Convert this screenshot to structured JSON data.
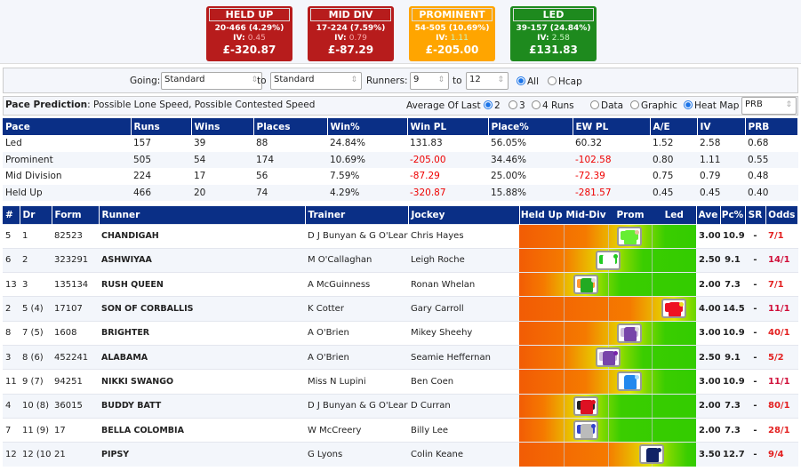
{
  "summary": [
    {
      "title": "HELD UP",
      "record": "20-466 (4.29%)",
      "iv_label": "IV:",
      "iv": "0.45",
      "iv_color": "#f7a8a8",
      "pl": "£-320.87",
      "bg": "#b71c1c"
    },
    {
      "title": "MID DIV",
      "record": "17-224 (7.59%)",
      "iv_label": "IV:",
      "iv": "0.79",
      "iv_color": "#f7a8a8",
      "pl": "£-87.29",
      "bg": "#b71c1c"
    },
    {
      "title": "PROMINENT",
      "record": "54-505 (10.69%)",
      "iv_label": "IV:",
      "iv": "1.11",
      "iv_color": "#c8f5c0",
      "pl": "£-205.00",
      "bg": "#ffa500"
    },
    {
      "title": "LED",
      "record": "39-157 (24.84%)",
      "iv_label": "IV:",
      "iv": "2.58",
      "iv_color": "#c8f5c0",
      "pl": "£131.83",
      "bg": "#1e8a1e"
    }
  ],
  "filter": {
    "going_label": "Going:",
    "going_from": "Standard",
    "to1": "to",
    "going_to": "Standard",
    "runners_label": "Runners:",
    "runners_from": "9",
    "to2": "to",
    "runners_to": "12",
    "all": "All",
    "hcap": "Hcap"
  },
  "pace": {
    "label": "Pace Prediction",
    "text": ": Possible Lone Speed, Possible Contested Speed",
    "avg_label": "Average Of Last",
    "opt2": "2",
    "opt3": "3",
    "opt4": "4 Runs",
    "data": "Data",
    "graphic": "Graphic",
    "heatmap": "Heat Map",
    "sort": "PRB"
  },
  "stats": {
    "headers": [
      "Pace",
      "Runs",
      "Wins",
      "Places",
      "Win%",
      "Win PL",
      "Place%",
      "EW PL",
      "A/E",
      "IV",
      "PRB"
    ],
    "rows": [
      [
        "Led",
        "157",
        "39",
        "88",
        "24.84%",
        "131.83",
        "56.05%",
        "60.32",
        "1.52",
        "2.58",
        "0.68"
      ],
      [
        "Prominent",
        "505",
        "54",
        "174",
        "10.69%",
        "-205.00",
        "34.46%",
        "-102.58",
        "0.80",
        "1.11",
        "0.55"
      ],
      [
        "Mid Division",
        "224",
        "17",
        "56",
        "7.59%",
        "-87.29",
        "25.00%",
        "-72.39",
        "0.75",
        "0.79",
        "0.48"
      ],
      [
        "Held Up",
        "466",
        "20",
        "74",
        "4.29%",
        "-320.87",
        "15.88%",
        "-281.57",
        "0.45",
        "0.45",
        "0.40"
      ]
    ]
  },
  "runners": {
    "headers": [
      "#",
      "Dr",
      "Form",
      "Runner",
      "Trainer",
      "Jockey",
      "Held Up",
      "Mid-Div",
      "Prom",
      "Led",
      "Ave",
      "Pc%",
      "SR",
      "Odds"
    ],
    "rows": [
      {
        "no": "5",
        "dr": "1",
        "form": "82523",
        "name": "CHANDIGAH",
        "trainer": "D J Bunyan & G O'Leary",
        "jockey": "Chris Hayes",
        "ave": "3.00",
        "pc": "10.9",
        "sr": "-",
        "odds": "7/1",
        "odds_color": "#e32020",
        "silk": [
          "#66ee33",
          "#66ee33",
          "#e8c0a0"
        ]
      },
      {
        "no": "6",
        "dr": "2",
        "form": "323291",
        "name": "ASHWIYAA",
        "trainer": "M O'Callaghan",
        "jockey": "Leigh Roche",
        "ave": "2.50",
        "pc": "9.1",
        "sr": "-",
        "odds": "14/1",
        "odds_color": "#d0103a",
        "silk": [
          "#ffffff",
          "#22cc22",
          "#22cc22"
        ]
      },
      {
        "no": "13",
        "dr": "3",
        "form": "135134",
        "name": "RUSH QUEEN",
        "trainer": "A McGuinness",
        "jockey": "Ronan Whelan",
        "ave": "2.00",
        "pc": "7.3",
        "sr": "-",
        "odds": "7/1",
        "odds_color": "#e32020",
        "silk": [
          "#22aa22",
          "#ff9933",
          "#dddddd"
        ]
      },
      {
        "no": "2",
        "dr": "5 (4)",
        "form": "17107",
        "name": "SON OF CORBALLIS",
        "trainer": "K Cotter",
        "jockey": "Gary Carroll",
        "ave": "4.00",
        "pc": "14.5",
        "sr": "-",
        "odds": "11/1",
        "odds_color": "#d0103a",
        "silk": [
          "#ee1122",
          "#ee1122",
          "#eedd22"
        ]
      },
      {
        "no": "8",
        "dr": "7 (5)",
        "form": "1608",
        "name": "BRIGHTER",
        "trainer": "A O'Brien",
        "jockey": "Mikey Sheehy",
        "ave": "3.00",
        "pc": "10.9",
        "sr": "-",
        "odds": "40/1",
        "odds_color": "#e32020",
        "silk": [
          "#7744aa",
          "#ccbbdd",
          "#dddddd"
        ]
      },
      {
        "no": "3",
        "dr": "8 (6)",
        "form": "452241",
        "name": "ALABAMA",
        "trainer": "A O'Brien",
        "jockey": "Seamie Heffernan",
        "ave": "2.50",
        "pc": "9.1",
        "sr": "-",
        "odds": "5/2",
        "odds_color": "#e32020",
        "silk": [
          "#7744aa",
          "#ccbbdd",
          "#7722aa"
        ]
      },
      {
        "no": "11",
        "dr": "9 (7)",
        "form": "94251",
        "name": "NIKKI SWANGO",
        "trainer": "Miss N Lupini",
        "jockey": "Ben Coen",
        "ave": "3.00",
        "pc": "10.9",
        "sr": "-",
        "odds": "11/1",
        "odds_color": "#d0103a",
        "silk": [
          "#2288ee",
          "#ffffff",
          "#aaddff"
        ]
      },
      {
        "no": "4",
        "dr": "10 (8)",
        "form": "36015",
        "name": "BUDDY BATT",
        "trainer": "D J Bunyan & G O'Leary",
        "jockey": "D Curran",
        "ave": "2.00",
        "pc": "7.3",
        "sr": "-",
        "odds": "80/1",
        "odds_color": "#e32020",
        "silk": [
          "#dd1122",
          "#222222",
          "#dd1122"
        ]
      },
      {
        "no": "7",
        "dr": "11 (9)",
        "form": "17",
        "name": "BELLA COLOMBIA",
        "trainer": "W McCreery",
        "jockey": "Billy Lee",
        "ave": "2.00",
        "pc": "7.3",
        "sr": "-",
        "odds": "28/1",
        "odds_color": "#e32020",
        "silk": [
          "#bbbbbb",
          "#3344cc",
          "#3344cc"
        ]
      },
      {
        "no": "12",
        "dr": "12 (10)",
        "form": "21",
        "name": "PIPSY",
        "trainer": "G Lyons",
        "jockey": "Colin Keane",
        "ave": "3.50",
        "pc": "12.7",
        "sr": "-",
        "odds": "9/4",
        "odds_color": "#e32020",
        "silk": [
          "#112266",
          "#ffffff",
          "#112266"
        ]
      }
    ]
  }
}
